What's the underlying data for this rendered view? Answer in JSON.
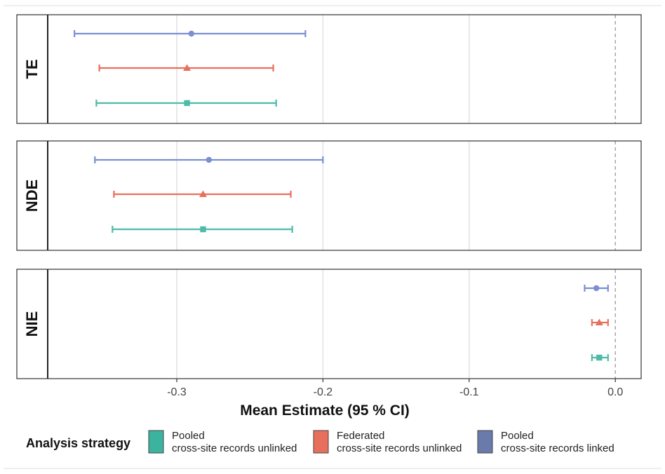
{
  "chart_data": {
    "type": "forest",
    "facets": [
      "TE",
      "NDE",
      "NIE"
    ],
    "xlabel": "Mean Estimate (95 % CI)",
    "xlim": [
      -0.39,
      0.018
    ],
    "x_ticks": [
      -0.3,
      -0.2,
      -0.1,
      0.0
    ],
    "x_tick_labels": [
      "-0.3",
      "-0.2",
      "-0.1",
      "0.0"
    ],
    "reference_line": 0.0,
    "grid": "vertical major",
    "legend_title": "Analysis strategy",
    "legend_position": "bottom",
    "series": [
      {
        "key": "pooled_unlinked",
        "label_line1": "Pooled",
        "label_line2": "cross-site records unlinked",
        "color": "#4dbba8",
        "legend_color": "#3cb39f",
        "shape": "square",
        "values": {
          "TE": {
            "estimate": -0.293,
            "lower": -0.355,
            "upper": -0.232
          },
          "NDE": {
            "estimate": -0.282,
            "lower": -0.344,
            "upper": -0.221
          },
          "NIE": {
            "estimate": -0.011,
            "lower": -0.016,
            "upper": -0.005
          }
        }
      },
      {
        "key": "federated_unlinked",
        "label_line1": "Federated",
        "label_line2": "cross-site records unlinked",
        "color": "#e86f5c",
        "legend_color": "#e86f5c",
        "shape": "triangle",
        "values": {
          "TE": {
            "estimate": -0.293,
            "lower": -0.353,
            "upper": -0.234
          },
          "NDE": {
            "estimate": -0.282,
            "lower": -0.343,
            "upper": -0.222
          },
          "NIE": {
            "estimate": -0.011,
            "lower": -0.016,
            "upper": -0.005
          }
        }
      },
      {
        "key": "pooled_linked",
        "label_line1": "Pooled",
        "label_line2": "cross-site records linked",
        "color": "#7b8fd1",
        "legend_color": "#6a7aab",
        "shape": "circle",
        "values": {
          "TE": {
            "estimate": -0.29,
            "lower": -0.37,
            "upper": -0.212
          },
          "NDE": {
            "estimate": -0.278,
            "lower": -0.356,
            "upper": -0.2
          },
          "NIE": {
            "estimate": -0.013,
            "lower": -0.021,
            "upper": -0.005
          }
        }
      }
    ]
  }
}
